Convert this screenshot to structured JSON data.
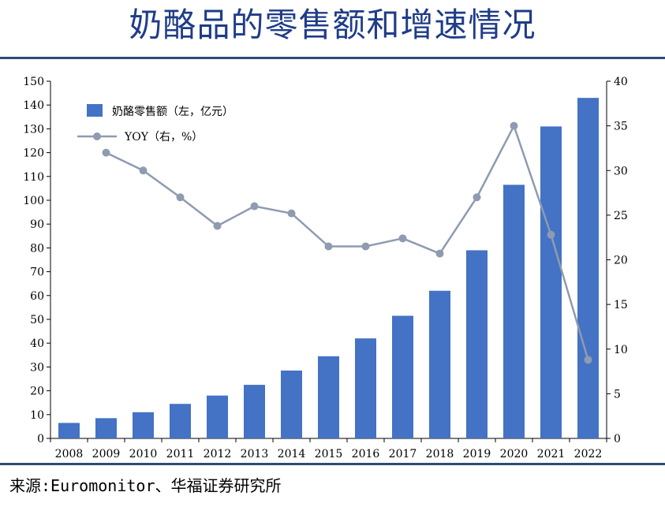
{
  "title": "奶酪品的零售额和增速情况",
  "source": "来源:Euromonitor、华福证券研究所",
  "colors": {
    "bar": "#4472c4",
    "line": "#8e9bb0",
    "rule": "#2e4a7a",
    "title": "#1f3c88"
  },
  "chart_data": {
    "type": "bar",
    "title": "",
    "xlabel": "",
    "ylabel": "",
    "y2label": "",
    "categories": [
      "2008",
      "2009",
      "2010",
      "2011",
      "2012",
      "2013",
      "2014",
      "2015",
      "2016",
      "2017",
      "2018",
      "2019",
      "2020",
      "2021",
      "2022"
    ],
    "series": [
      {
        "name": "奶酪零售额（左，亿元）",
        "type": "bar",
        "axis": "left",
        "values": [
          6.5,
          8.5,
          11,
          14.5,
          18,
          22.5,
          28.5,
          34.5,
          42,
          51.5,
          62,
          79,
          106.5,
          131,
          143
        ]
      },
      {
        "name": "YOY（右，%）",
        "type": "line",
        "axis": "right",
        "values": [
          null,
          32,
          30,
          27,
          23.8,
          26,
          25.2,
          21.5,
          21.5,
          22.4,
          20.7,
          27,
          35,
          22.8,
          8.8
        ]
      }
    ],
    "ylim": [
      0,
      150
    ],
    "y2lim": [
      0,
      40
    ],
    "yticks": [
      0,
      10,
      20,
      30,
      40,
      50,
      60,
      70,
      80,
      90,
      100,
      110,
      120,
      130,
      140,
      150
    ],
    "y2ticks": [
      0,
      5,
      10,
      15,
      20,
      25,
      30,
      35,
      40
    ],
    "legend_position": "top-left",
    "grid": false
  }
}
